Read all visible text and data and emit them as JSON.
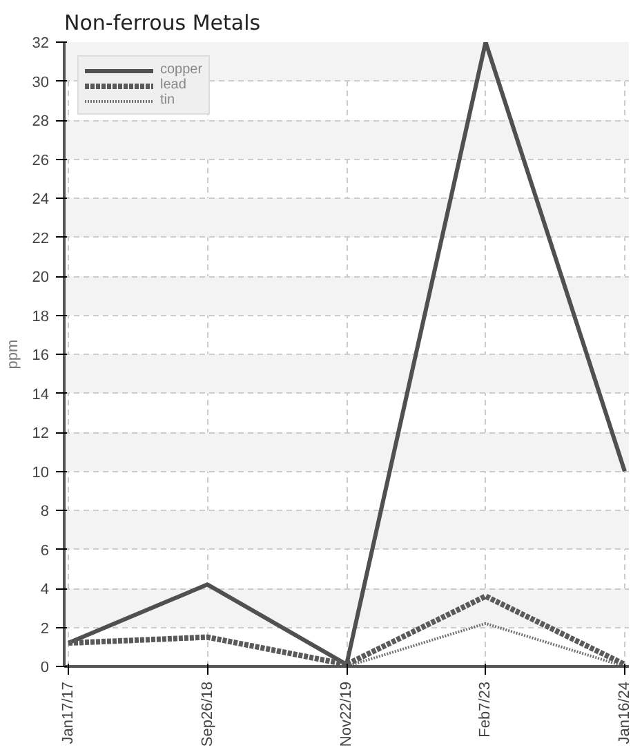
{
  "chart_data": {
    "type": "line",
    "title": "Non-ferrous Metals",
    "ylabel": "ppm",
    "categories": [
      "Jan17/17",
      "Sep26/18",
      "Nov22/19",
      "Feb7/23",
      "Jan16/24"
    ],
    "series": [
      {
        "name": "copper",
        "color": "#505050",
        "values": [
          1.2,
          4.2,
          0.1,
          32,
          10
        ],
        "line_style": "solid"
      },
      {
        "name": "lead",
        "color": "#5a5a5a",
        "values": [
          1.2,
          1.5,
          0.1,
          3.6,
          0.1
        ],
        "line_style": "dashed"
      },
      {
        "name": "tin",
        "color": "#707070",
        "values": [
          0,
          0,
          0,
          2.2,
          0
        ],
        "line_style": "dotted"
      }
    ],
    "ylim": [
      0,
      32
    ],
    "yticks": [
      0,
      2,
      4,
      6,
      8,
      10,
      12,
      14,
      16,
      18,
      20,
      22,
      24,
      26,
      28,
      30,
      32
    ],
    "grid": true,
    "legend": "top left",
    "marker": "none"
  }
}
